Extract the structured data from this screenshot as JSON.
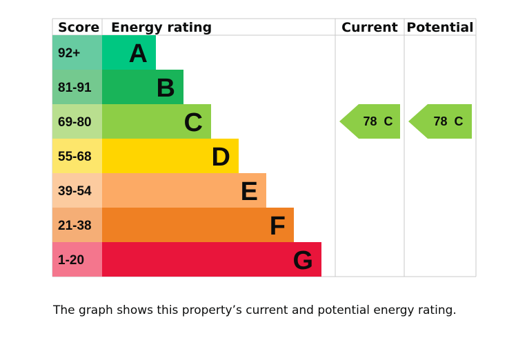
{
  "chart_data": {
    "type": "bar",
    "headers": {
      "score": "Score",
      "energy_rating": "Energy rating",
      "current": "Current",
      "potential": "Potential"
    },
    "bands": [
      {
        "score": "92+",
        "letter": "A",
        "color": "#00c781",
        "score_bg": "#67cba1"
      },
      {
        "score": "81-91",
        "letter": "B",
        "color": "#19b459",
        "score_bg": "#74c98f"
      },
      {
        "score": "69-80",
        "letter": "C",
        "color": "#8dce46",
        "score_bg": "#b9df8f"
      },
      {
        "score": "55-68",
        "letter": "D",
        "color": "#ffd500",
        "score_bg": "#fde66b"
      },
      {
        "score": "39-54",
        "letter": "E",
        "color": "#fcaa65",
        "score_bg": "#fccb9f"
      },
      {
        "score": "21-38",
        "letter": "F",
        "color": "#ef8023",
        "score_bg": "#f5ae76"
      },
      {
        "score": "1-20",
        "letter": "G",
        "color": "#e9153b",
        "score_bg": "#f4768d"
      }
    ],
    "current": {
      "value": 78,
      "letter": "C",
      "label": "78  C",
      "color": "#8dce46"
    },
    "potential": {
      "value": 78,
      "letter": "C",
      "label": "78  C",
      "color": "#8dce46"
    }
  },
  "caption": "The graph shows this property’s current and potential energy rating."
}
